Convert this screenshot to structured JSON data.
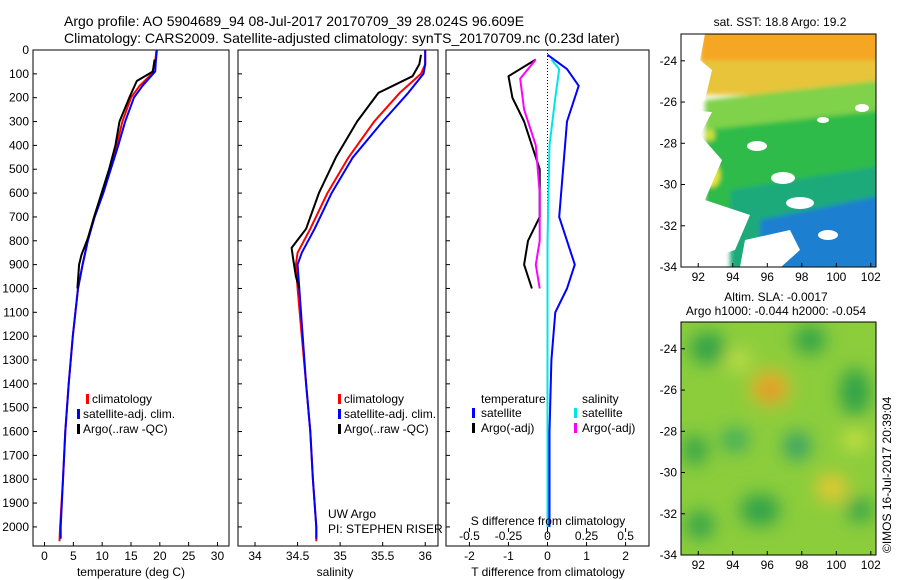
{
  "header": {
    "line1": "Argo profile: AO 5904689_94 08-Jul-2017 20170709_39 28.024S 96.609E",
    "line2": "Climatology: CARS2009. Satellite-adjusted climatology: synTS_20170709.nc (0.23d later)"
  },
  "colors": {
    "climatology": "#ff0000",
    "satellite": "#0000ff",
    "argo": "#000000",
    "sat_sal": "#00e5e5",
    "argo_sal_adj": "#ff00ff"
  },
  "chart_data": [
    {
      "type": "line",
      "xlabel": "temperature (deg C)",
      "ylabel": "",
      "xlim": [
        -2,
        32
      ],
      "ylim": [
        2080,
        0
      ],
      "xticks": [
        0,
        5,
        10,
        15,
        20,
        25,
        30
      ],
      "yticks": [
        0,
        100,
        200,
        300,
        400,
        500,
        600,
        700,
        800,
        900,
        1000,
        1100,
        1200,
        1300,
        1400,
        1500,
        1600,
        1700,
        1800,
        1900,
        2000
      ],
      "legend": {
        "items": [
          "climatology",
          "satellite-adj. clim.",
          "Argo(..raw -QC)"
        ]
      },
      "series": [
        {
          "name": "climatology",
          "color": "#ff0000",
          "points": [
            [
              19.4,
              0
            ],
            [
              19.2,
              50
            ],
            [
              18.6,
              100
            ],
            [
              16.5,
              150
            ],
            [
              15.0,
              200
            ],
            [
              13.5,
              300
            ],
            [
              12.5,
              400
            ],
            [
              11.3,
              500
            ],
            [
              10.0,
              600
            ],
            [
              8.6,
              700
            ],
            [
              7.5,
              800
            ],
            [
              6.6,
              900
            ],
            [
              5.8,
              1000
            ],
            [
              4.9,
              1200
            ],
            [
              4.2,
              1400
            ],
            [
              3.6,
              1600
            ],
            [
              3.2,
              1800
            ],
            [
              2.7,
              2000
            ],
            [
              2.6,
              2060
            ]
          ]
        },
        {
          "name": "satellite-adj. clim.",
          "color": "#0000ff",
          "points": [
            [
              19.5,
              0
            ],
            [
              19.3,
              50
            ],
            [
              19.2,
              90
            ],
            [
              17.0,
              150
            ],
            [
              15.5,
              200
            ],
            [
              14.0,
              300
            ],
            [
              12.8,
              400
            ],
            [
              11.5,
              500
            ],
            [
              10.2,
              600
            ],
            [
              8.7,
              700
            ],
            [
              7.5,
              800
            ],
            [
              6.6,
              900
            ],
            [
              5.8,
              1000
            ],
            [
              4.9,
              1200
            ],
            [
              4.2,
              1400
            ],
            [
              3.6,
              1600
            ],
            [
              3.2,
              1800
            ],
            [
              2.8,
              2000
            ],
            [
              2.8,
              2050
            ]
          ]
        },
        {
          "name": "Argo(..raw -QC)",
          "color": "#000000",
          "points": [
            [
              19.1,
              40
            ],
            [
              18.9,
              70
            ],
            [
              18.8,
              90
            ],
            [
              16.0,
              130
            ],
            [
              14.7,
              200
            ],
            [
              13.0,
              300
            ],
            [
              12.3,
              400
            ],
            [
              11.2,
              500
            ],
            [
              9.9,
              600
            ],
            [
              8.6,
              700
            ],
            [
              7.5,
              790
            ],
            [
              6.4,
              860
            ],
            [
              6.0,
              900
            ],
            [
              5.7,
              1000
            ]
          ]
        }
      ]
    },
    {
      "type": "line",
      "xlabel": "salinity",
      "ylabel": "",
      "xlim": [
        33.8,
        36.15
      ],
      "ylim": [
        2080,
        0
      ],
      "xticks": [
        34,
        34.5,
        35,
        35.5,
        36
      ],
      "legend": {
        "items": [
          "climatology",
          "satellite-adj. clim.",
          "Argo(..raw -QC)"
        ]
      },
      "annotations": [
        "UW Argo",
        "PI: STEPHEN RISER"
      ],
      "series": [
        {
          "name": "climatology",
          "color": "#ff0000",
          "points": [
            [
              36.0,
              0
            ],
            [
              36.0,
              60
            ],
            [
              35.95,
              100
            ],
            [
              35.7,
              180
            ],
            [
              35.4,
              300
            ],
            [
              35.1,
              450
            ],
            [
              34.85,
              600
            ],
            [
              34.65,
              750
            ],
            [
              34.5,
              850
            ],
            [
              34.48,
              900
            ],
            [
              34.5,
              1000
            ],
            [
              34.55,
              1200
            ],
            [
              34.6,
              1400
            ],
            [
              34.65,
              1600
            ],
            [
              34.68,
              1800
            ],
            [
              34.72,
              2000
            ],
            [
              34.72,
              2060
            ]
          ]
        },
        {
          "name": "satellite-adj. clim.",
          "color": "#0000ff",
          "points": [
            [
              36.0,
              0
            ],
            [
              36.0,
              60
            ],
            [
              35.98,
              100
            ],
            [
              35.8,
              180
            ],
            [
              35.5,
              300
            ],
            [
              35.15,
              450
            ],
            [
              34.9,
              600
            ],
            [
              34.7,
              750
            ],
            [
              34.55,
              850
            ],
            [
              34.5,
              900
            ],
            [
              34.52,
              1000
            ],
            [
              34.56,
              1200
            ],
            [
              34.6,
              1400
            ],
            [
              34.65,
              1600
            ],
            [
              34.68,
              1800
            ],
            [
              34.72,
              2000
            ],
            [
              34.72,
              2050
            ]
          ]
        },
        {
          "name": "Argo(..raw -QC)",
          "color": "#000000",
          "points": [
            [
              35.95,
              20
            ],
            [
              35.93,
              60
            ],
            [
              35.85,
              110
            ],
            [
              35.45,
              180
            ],
            [
              35.2,
              300
            ],
            [
              34.95,
              450
            ],
            [
              34.75,
              600
            ],
            [
              34.6,
              750
            ],
            [
              34.43,
              830
            ],
            [
              34.45,
              880
            ],
            [
              34.48,
              950
            ],
            [
              34.52,
              1000
            ]
          ]
        }
      ]
    },
    {
      "type": "line",
      "xlabel": "T difference from climatology",
      "secondary_xlabel": "S difference from climatology",
      "xlim": [
        -2.6,
        2.6
      ],
      "ylim": [
        2080,
        0
      ],
      "xticks": [
        -2,
        -1,
        0,
        1,
        2
      ],
      "secondary_xticks": [
        "-0.5",
        "-0.25",
        "0",
        "0.25",
        "0.5"
      ],
      "legend": {
        "headers": [
          "temperature",
          "salinity"
        ],
        "items": [
          "satellite",
          "Argo(-adj)",
          "satellite",
          "Argo(-adj)"
        ]
      },
      "series": [
        {
          "name": "satellite",
          "color": "#0000ff",
          "points": [
            [
              0.0,
              20
            ],
            [
              0.5,
              80
            ],
            [
              0.8,
              150
            ],
            [
              0.5,
              300
            ],
            [
              0.4,
              500
            ],
            [
              0.3,
              700
            ],
            [
              0.5,
              800
            ],
            [
              0.7,
              900
            ],
            [
              0.5,
              1000
            ],
            [
              0.2,
              1100
            ],
            [
              0.1,
              1300
            ],
            [
              0.05,
              1600
            ],
            [
              0.05,
              2000
            ]
          ]
        },
        {
          "name": "Argo(-adj)",
          "color": "#000000",
          "points": [
            [
              -0.3,
              40
            ],
            [
              -1.0,
              110
            ],
            [
              -0.9,
              200
            ],
            [
              -0.6,
              300
            ],
            [
              -0.4,
              400
            ],
            [
              -0.2,
              500
            ],
            [
              -0.2,
              700
            ],
            [
              -0.5,
              800
            ],
            [
              -0.6,
              900
            ],
            [
              -0.4,
              1000
            ]
          ]
        },
        {
          "name": "satellite",
          "color": "#00e5e5",
          "points": [
            [
              0.1,
              40
            ],
            [
              0.3,
              80
            ],
            [
              0.2,
              200
            ],
            [
              0.05,
              400
            ],
            [
              0.0,
              800
            ],
            [
              0.0,
              1200
            ],
            [
              0.0,
              2000
            ]
          ]
        },
        {
          "name": "Argo(-adj)",
          "color": "#ff00ff",
          "points": [
            [
              -0.3,
              40
            ],
            [
              -0.7,
              120
            ],
            [
              -0.6,
              250
            ],
            [
              -0.3,
              400
            ],
            [
              -0.2,
              600
            ],
            [
              -0.2,
              800
            ],
            [
              -0.3,
              900
            ],
            [
              -0.2,
              1000
            ]
          ]
        }
      ]
    },
    {
      "type": "heatmap",
      "title": "sat. SST: 18.8 Argo: 19.2",
      "xticks": [
        92,
        94,
        96,
        98,
        100,
        102
      ],
      "yticks": [
        -24,
        -26,
        -28,
        -30,
        -32,
        -34
      ]
    },
    {
      "type": "heatmap",
      "title": "Altim. SLA: -0.0017",
      "subtitle": "Argo h1000: -0.044 h2000: -0.054",
      "xticks": [
        92,
        94,
        96,
        98,
        100,
        102
      ],
      "yticks": [
        -24,
        -26,
        -28,
        -30,
        -32,
        -34
      ]
    }
  ],
  "footer": {
    "stamp": "©IMOS 16-Jul-2017 20:39:04"
  }
}
